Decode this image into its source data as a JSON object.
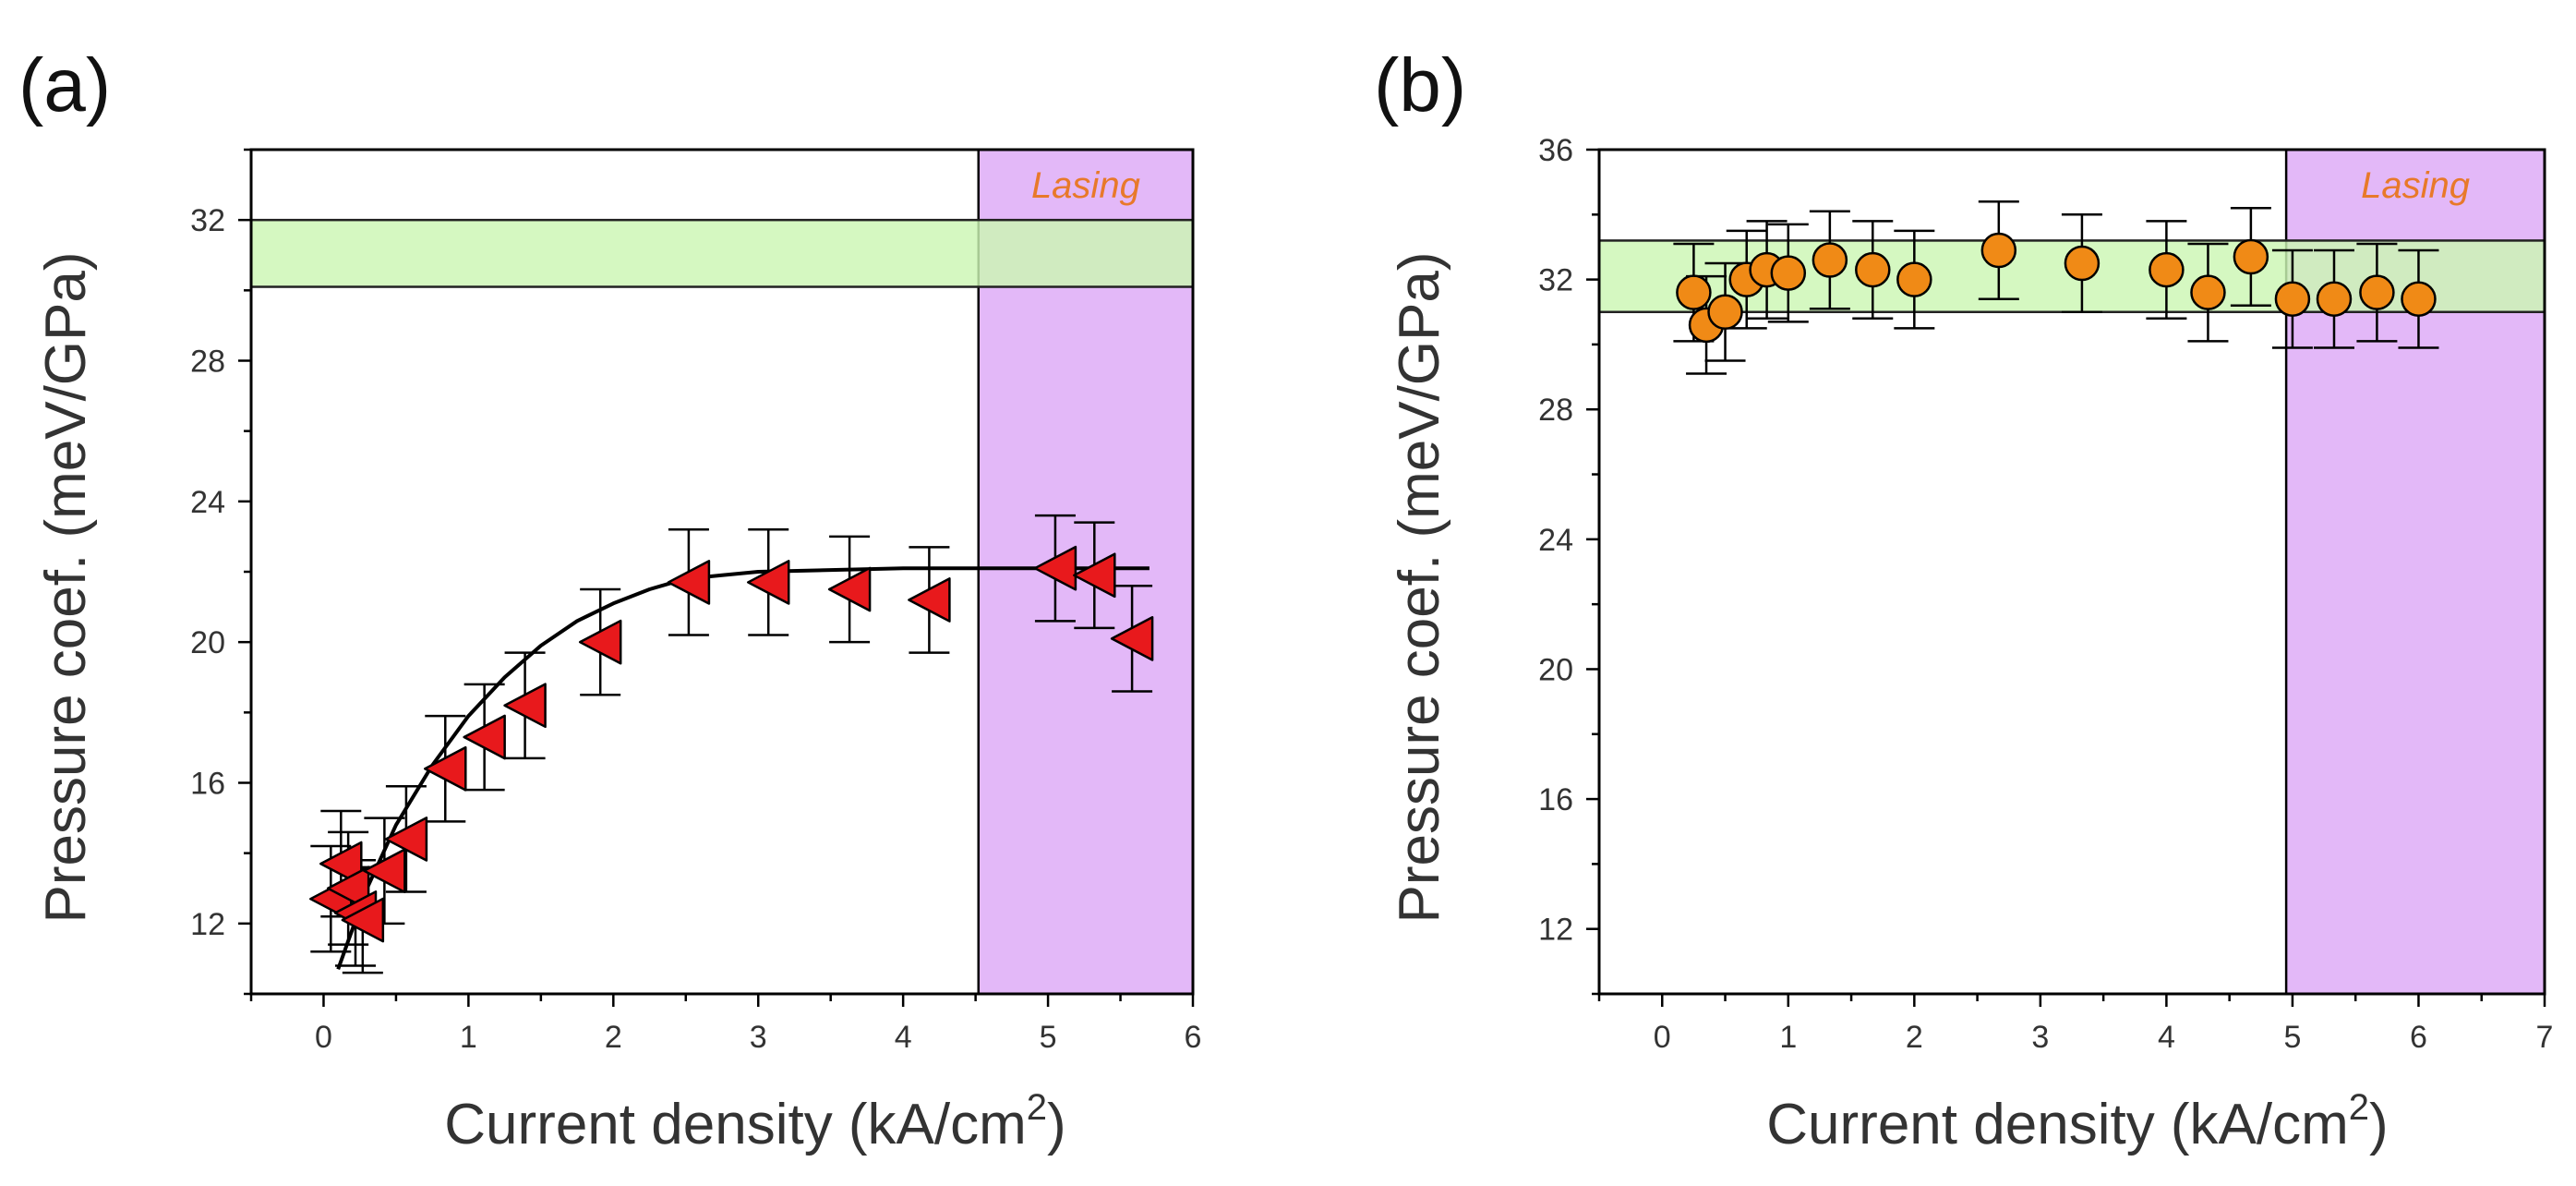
{
  "colors": {
    "band": "#ccf7b3",
    "band_stroke": "#222222",
    "lasing_fill": "#e3b8f8",
    "lasing_text": "#e8792a",
    "triangle_fill": "#e8191c",
    "circle_fill": "#f08a16",
    "axis": "#000000",
    "fit_line": "#000000"
  },
  "chart_data": [
    {
      "panel_label": "(a)",
      "type": "scatter",
      "marker": "triangle-left",
      "xlabel": "Current density (kA/cm",
      "xlabel_sup": "2",
      "xlabel_end": ")",
      "ylabel": "Pressure coef. (meV/GPa)",
      "xlim": [
        -0.5,
        6
      ],
      "ylim": [
        10,
        34
      ],
      "xticks": [
        0,
        1,
        2,
        3,
        4,
        5,
        6
      ],
      "yticks": [
        12,
        16,
        20,
        24,
        28,
        32
      ],
      "band": {
        "y_low": 30.1,
        "y_high": 32.0
      },
      "lasing_region": {
        "x_start": 4.52,
        "x_end": 6,
        "label": "Lasing"
      },
      "points": [
        {
          "x": 0.05,
          "y": 12.7,
          "err": 1.5
        },
        {
          "x": 0.12,
          "y": 13.7,
          "err": 1.5
        },
        {
          "x": 0.17,
          "y": 13.0,
          "err": 1.6
        },
        {
          "x": 0.22,
          "y": 12.3,
          "err": 1.5
        },
        {
          "x": 0.27,
          "y": 12.1,
          "err": 1.5
        },
        {
          "x": 0.42,
          "y": 13.5,
          "err": 1.5
        },
        {
          "x": 0.57,
          "y": 14.4,
          "err": 1.5
        },
        {
          "x": 0.84,
          "y": 16.4,
          "err": 1.5
        },
        {
          "x": 1.11,
          "y": 17.3,
          "err": 1.5
        },
        {
          "x": 1.39,
          "y": 18.2,
          "err": 1.5
        },
        {
          "x": 1.91,
          "y": 20.0,
          "err": 1.5
        },
        {
          "x": 2.52,
          "y": 21.7,
          "err": 1.5
        },
        {
          "x": 3.07,
          "y": 21.7,
          "err": 1.5
        },
        {
          "x": 3.63,
          "y": 21.5,
          "err": 1.5
        },
        {
          "x": 4.18,
          "y": 21.2,
          "err": 1.5
        },
        {
          "x": 5.05,
          "y": 22.1,
          "err": 1.5
        },
        {
          "x": 5.32,
          "y": 21.9,
          "err": 1.5
        },
        {
          "x": 5.58,
          "y": 20.1,
          "err": 1.5
        }
      ],
      "fit": {
        "x": [
          0.1,
          0.3,
          0.5,
          0.75,
          1.0,
          1.25,
          1.5,
          1.75,
          2.0,
          2.25,
          2.5,
          2.75,
          3.0,
          3.5,
          4.0,
          4.5,
          5.0,
          5.5,
          5.7
        ],
        "y": [
          10.7,
          13.0,
          14.8,
          16.5,
          17.9,
          19.0,
          19.9,
          20.6,
          21.1,
          21.5,
          21.8,
          21.9,
          22.0,
          22.05,
          22.1,
          22.1,
          22.1,
          22.1,
          22.1
        ]
      }
    },
    {
      "panel_label": "(b)",
      "type": "scatter",
      "marker": "circle",
      "xlabel": "Current density (kA/cm",
      "xlabel_sup": "2",
      "xlabel_end": ")",
      "ylabel": "Pressure coef. (meV/GPa)",
      "xlim": [
        -0.5,
        7
      ],
      "ylim": [
        10,
        36
      ],
      "xticks": [
        0,
        1,
        2,
        3,
        4,
        5,
        6,
        7
      ],
      "yticks": [
        12,
        16,
        20,
        24,
        28,
        32,
        36
      ],
      "band": {
        "y_low": 31.0,
        "y_high": 33.2
      },
      "lasing_region": {
        "x_start": 4.95,
        "x_end": 7,
        "label": "Lasing"
      },
      "points": [
        {
          "x": 0.25,
          "y": 31.6,
          "err": 1.5
        },
        {
          "x": 0.35,
          "y": 30.6,
          "err": 1.5
        },
        {
          "x": 0.5,
          "y": 31.0,
          "err": 1.5
        },
        {
          "x": 0.67,
          "y": 32.0,
          "err": 1.5
        },
        {
          "x": 0.83,
          "y": 32.3,
          "err": 1.5
        },
        {
          "x": 1.0,
          "y": 32.2,
          "err": 1.5
        },
        {
          "x": 1.33,
          "y": 32.6,
          "err": 1.5
        },
        {
          "x": 1.67,
          "y": 32.3,
          "err": 1.5
        },
        {
          "x": 2.0,
          "y": 32.0,
          "err": 1.5
        },
        {
          "x": 2.67,
          "y": 32.9,
          "err": 1.5
        },
        {
          "x": 3.33,
          "y": 32.5,
          "err": 1.5
        },
        {
          "x": 4.0,
          "y": 32.3,
          "err": 1.5
        },
        {
          "x": 4.33,
          "y": 31.6,
          "err": 1.5
        },
        {
          "x": 4.67,
          "y": 32.7,
          "err": 1.5
        },
        {
          "x": 5.0,
          "y": 31.4,
          "err": 1.5
        },
        {
          "x": 5.33,
          "y": 31.4,
          "err": 1.5
        },
        {
          "x": 5.67,
          "y": 31.6,
          "err": 1.5
        },
        {
          "x": 6.0,
          "y": 31.4,
          "err": 1.5
        }
      ]
    }
  ]
}
